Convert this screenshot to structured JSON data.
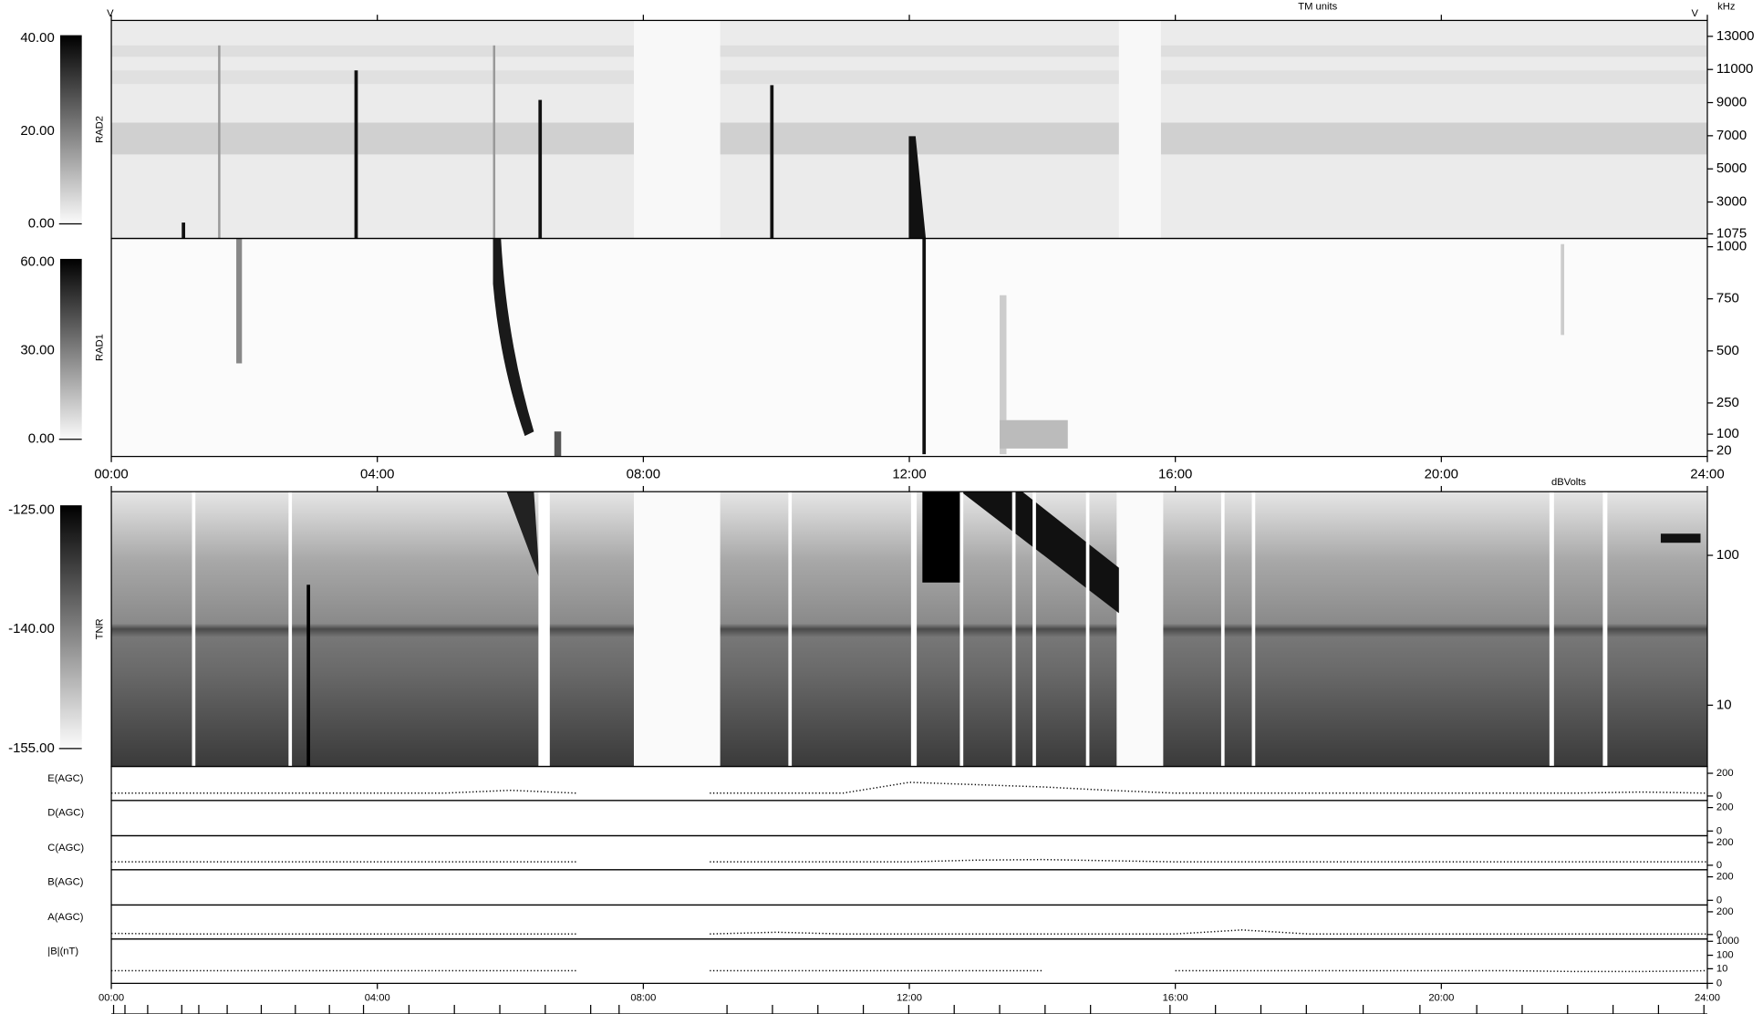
{
  "header": {
    "units": "TM units",
    "freq_unit": "kHz",
    "volt_left": "V",
    "volt_right": "V",
    "tnr_unit": "dBVolts"
  },
  "time_axis": {
    "xlim": [
      0,
      24
    ],
    "xticks": [
      {
        "value": 0,
        "label": "00:00"
      },
      {
        "value": 4,
        "label": "04:00"
      },
      {
        "value": 8,
        "label": "08:00"
      },
      {
        "value": 12,
        "label": "12:00"
      },
      {
        "value": 16,
        "label": "16:00"
      },
      {
        "value": 20,
        "label": "20:00"
      },
      {
        "value": 24,
        "label": "24:00"
      }
    ]
  },
  "chart_data": [
    {
      "type": "spectrogram",
      "label": "RAD2",
      "ylim": [
        800,
        13960
      ],
      "yticks": [
        13000,
        11000,
        9000,
        7000,
        5000,
        3000,
        1075
      ],
      "clim": [
        -0.7,
        40.7
      ],
      "cticks": [
        {
          "value": 40,
          "label": "40.00"
        },
        {
          "value": 20,
          "label": "20.00"
        },
        {
          "value": 0,
          "label": "0.00"
        }
      ]
    },
    {
      "type": "spectrogram",
      "label": "RAD1",
      "ylim": [
        -7,
        1040
      ],
      "yticks": [
        1000,
        750,
        500,
        250,
        100,
        20
      ],
      "clim": [
        -1.2,
        61.2
      ],
      "cticks": [
        {
          "value": 60,
          "label": "60.00"
        },
        {
          "value": 30,
          "label": "30.00"
        },
        {
          "value": 0,
          "label": "0.00"
        }
      ]
    },
    {
      "type": "spectrogram",
      "label": "TNR",
      "log": true,
      "ylim": [
        3.9,
        266
      ],
      "yticks": [
        100,
        10
      ],
      "clim": [
        -155.4,
        -124.4
      ],
      "cticks": [
        {
          "value": -125,
          "label": "-125.00"
        },
        {
          "value": -140,
          "label": "-140.00"
        },
        {
          "value": -155,
          "label": "-155.00"
        }
      ]
    },
    {
      "type": "line",
      "label": "E(AGC)",
      "ylim": [
        -40,
        260
      ],
      "yticks": [
        200,
        0
      ],
      "x": [
        0,
        1,
        2,
        3,
        4,
        5,
        6,
        7,
        8,
        9,
        10,
        11,
        12,
        13,
        14,
        15,
        16,
        17,
        18,
        19,
        20,
        21,
        22,
        23,
        24
      ],
      "values": [
        25,
        25,
        25,
        25,
        25,
        25,
        50,
        25,
        null,
        25,
        25,
        25,
        120,
        100,
        80,
        50,
        25,
        25,
        25,
        25,
        25,
        25,
        25,
        35,
        25
      ]
    },
    {
      "type": "line",
      "label": "D(AGC)",
      "ylim": [
        -40,
        260
      ],
      "yticks": [
        200,
        0
      ]
    },
    {
      "type": "line",
      "label": "C(AGC)",
      "ylim": [
        -40,
        260
      ],
      "yticks": [
        200,
        0
      ],
      "x": [
        0,
        1,
        2,
        3,
        4,
        5,
        6,
        7,
        8,
        9,
        10,
        11,
        12,
        13,
        14,
        15,
        16,
        17,
        18,
        19,
        20,
        21,
        22,
        23,
        24
      ],
      "values": [
        30,
        30,
        30,
        30,
        30,
        30,
        30,
        30,
        null,
        30,
        30,
        30,
        30,
        45,
        50,
        40,
        30,
        30,
        30,
        30,
        30,
        30,
        30,
        30,
        30
      ]
    },
    {
      "type": "line",
      "label": "B(AGC)",
      "ylim": [
        -40,
        260
      ],
      "yticks": [
        200,
        0
      ]
    },
    {
      "type": "line",
      "label": "A(AGC)",
      "ylim": [
        -40,
        260
      ],
      "yticks": [
        200,
        0
      ],
      "x": [
        0,
        1,
        2,
        3,
        4,
        5,
        6,
        7,
        8,
        9,
        10,
        11,
        12,
        13,
        14,
        15,
        16,
        17,
        18,
        19,
        20,
        21,
        22,
        23,
        24
      ],
      "values": [
        10,
        5,
        5,
        5,
        5,
        5,
        5,
        5,
        null,
        5,
        20,
        5,
        5,
        5,
        5,
        5,
        5,
        40,
        5,
        5,
        5,
        5,
        5,
        5,
        5
      ]
    },
    {
      "type": "line",
      "label": "|B|(nT)",
      "scale": "log1p",
      "ylim": [
        0,
        1444
      ],
      "yticks": [
        1000,
        100,
        10,
        0
      ],
      "x": [
        0,
        1,
        2,
        3,
        4,
        5,
        6,
        7,
        8,
        9,
        10,
        11,
        12,
        13,
        14,
        15,
        16,
        17,
        18,
        19,
        20,
        21,
        22,
        23,
        24
      ],
      "values": [
        7,
        7,
        7,
        7,
        7,
        7,
        7,
        7,
        null,
        7,
        7,
        7,
        7,
        7,
        7,
        null,
        7,
        7,
        7,
        7,
        7,
        7,
        6,
        6,
        7
      ]
    }
  ]
}
